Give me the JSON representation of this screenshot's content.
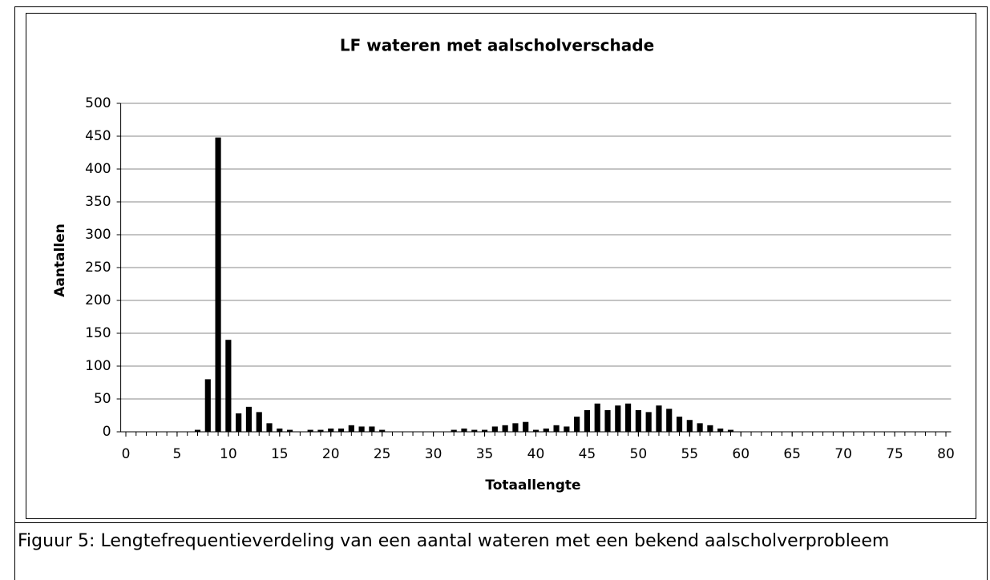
{
  "chart_data": {
    "type": "bar",
    "title": "LF wateren met aalscholverschade",
    "x_label": "Totaallengte",
    "y_label": "Aantallen",
    "x": [
      0,
      1,
      2,
      3,
      4,
      5,
      6,
      7,
      8,
      9,
      10,
      11,
      12,
      13,
      14,
      15,
      16,
      17,
      18,
      19,
      20,
      21,
      22,
      23,
      24,
      25,
      26,
      27,
      28,
      29,
      30,
      31,
      32,
      33,
      34,
      35,
      36,
      37,
      38,
      39,
      40,
      41,
      42,
      43,
      44,
      45,
      46,
      47,
      48,
      49,
      50,
      51,
      52,
      53,
      54,
      55,
      56,
      57,
      58,
      59,
      60,
      61,
      62,
      63,
      64,
      65,
      66,
      67,
      68,
      69,
      70,
      71,
      72,
      73,
      74,
      75,
      76,
      77,
      78,
      79,
      80
    ],
    "values": [
      0,
      0,
      0,
      0,
      0,
      0,
      0,
      3,
      80,
      448,
      140,
      28,
      38,
      30,
      13,
      5,
      3,
      0,
      3,
      3,
      5,
      5,
      10,
      8,
      8,
      3,
      0,
      0,
      0,
      0,
      0,
      0,
      3,
      5,
      3,
      3,
      8,
      10,
      13,
      15,
      3,
      5,
      10,
      8,
      23,
      33,
      43,
      33,
      40,
      43,
      33,
      30,
      40,
      35,
      23,
      18,
      13,
      10,
      5,
      3,
      0,
      0,
      0,
      0,
      0,
      0,
      0,
      0,
      0,
      0,
      0,
      0,
      0,
      0,
      0,
      0,
      0,
      0,
      0,
      0,
      0
    ],
    "color": "#000000",
    "xlim": [
      -0.5,
      80.5
    ],
    "xticks": [
      0,
      5,
      10,
      15,
      20,
      25,
      30,
      35,
      40,
      45,
      50,
      55,
      60,
      65,
      70,
      75,
      80
    ],
    "ylim": [
      0,
      500
    ],
    "yticks": [
      0,
      50,
      100,
      150,
      200,
      250,
      300,
      350,
      400,
      450,
      500
    ],
    "grid": true
  },
  "caption": "Figuur 5: Lengtefrequentieverdeling van een aantal wateren met een bekend aalscholverprobleem"
}
